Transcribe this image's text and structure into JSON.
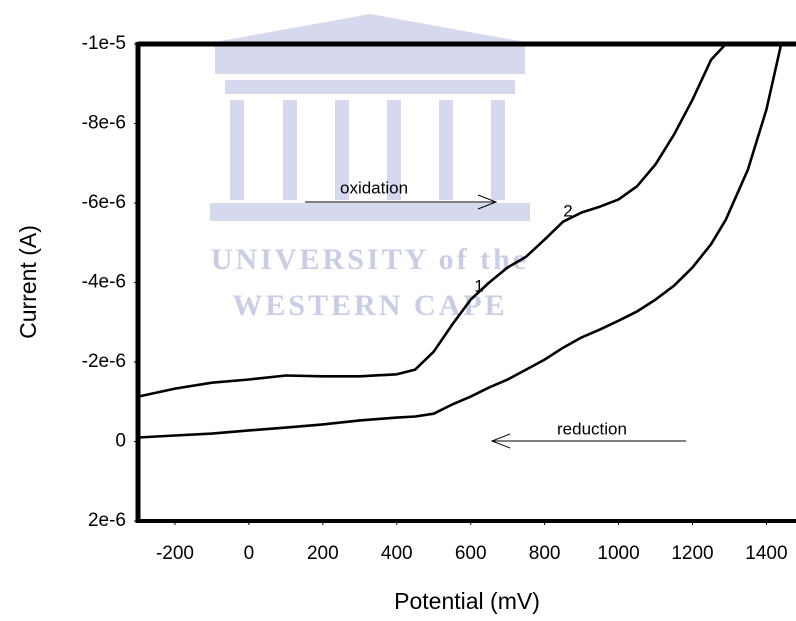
{
  "chart_data": {
    "type": "line",
    "x_label": "Potential (mV)",
    "y_label": "Current (A)",
    "x": [
      -300,
      -200,
      -100,
      0,
      100,
      200,
      300,
      400,
      450,
      500,
      550,
      600,
      650,
      700,
      750,
      800,
      850,
      900,
      950,
      1000,
      1050,
      1100,
      1150,
      1200,
      1250,
      1290,
      1300,
      1350,
      1400,
      1440
    ],
    "series": [
      {
        "color": "#000000",
        "values": [
          -1.13e-06,
          -1.33e-06,
          -1.48e-06,
          -1.56e-06,
          -1.66e-06,
          -1.64e-06,
          -1.64e-06,
          -1.69e-06,
          -1.81e-06,
          -2.26e-06,
          -2.94e-06,
          -3.57e-06,
          -4e-06,
          -4.38e-06,
          -4.65e-06,
          -5.08e-06,
          -5.53e-06,
          -5.76e-06,
          -5.91e-06,
          -6.09e-06,
          -6.42e-06,
          -6.97e-06,
          -7.72e-06,
          -8.6e-06,
          -9.6e-06,
          -1e-05,
          null,
          null,
          null,
          null
        ]
      },
      {
        "color": "#000000",
        "values": [
          -1e-07,
          -1.5e-07,
          -2e-07,
          -2.8e-07,
          -3.5e-07,
          -4.3e-07,
          -5.3e-07,
          -6e-07,
          -6.3e-07,
          -7e-07,
          -9.3e-07,
          -1.13e-06,
          -1.36e-06,
          -1.56e-06,
          -1.81e-06,
          -2.06e-06,
          -2.36e-06,
          -2.62e-06,
          -2.82e-06,
          -3.04e-06,
          -3.27e-06,
          -3.57e-06,
          -3.92e-06,
          -4.38e-06,
          -4.96e-06,
          -5.58e-06,
          -5.79e-06,
          -6.84e-06,
          -8.35e-06,
          -1e-05
        ]
      }
    ],
    "xlim": [
      -300,
      1480
    ],
    "xticks": [
      -200,
      0,
      200,
      400,
      600,
      800,
      1000,
      1200,
      1400
    ],
    "ylim": [
      2e-06,
      -1e-05
    ],
    "yticks": [
      {
        "value": -1e-05,
        "label": "-1e-5"
      },
      {
        "value": -8e-06,
        "label": "-8e-6"
      },
      {
        "value": -6e-06,
        "label": "-6e-6"
      },
      {
        "value": -4e-06,
        "label": "-4e-6"
      },
      {
        "value": -2e-06,
        "label": "-2e-6"
      },
      0,
      {
        "value": 2e-06,
        "label": "2e-6"
      }
    ],
    "grid": false,
    "annotations": [
      "oxidation",
      "reduction",
      "1",
      "2"
    ],
    "watermark": [
      "UNIVERSITY of the",
      "WESTERN CAPE"
    ]
  }
}
